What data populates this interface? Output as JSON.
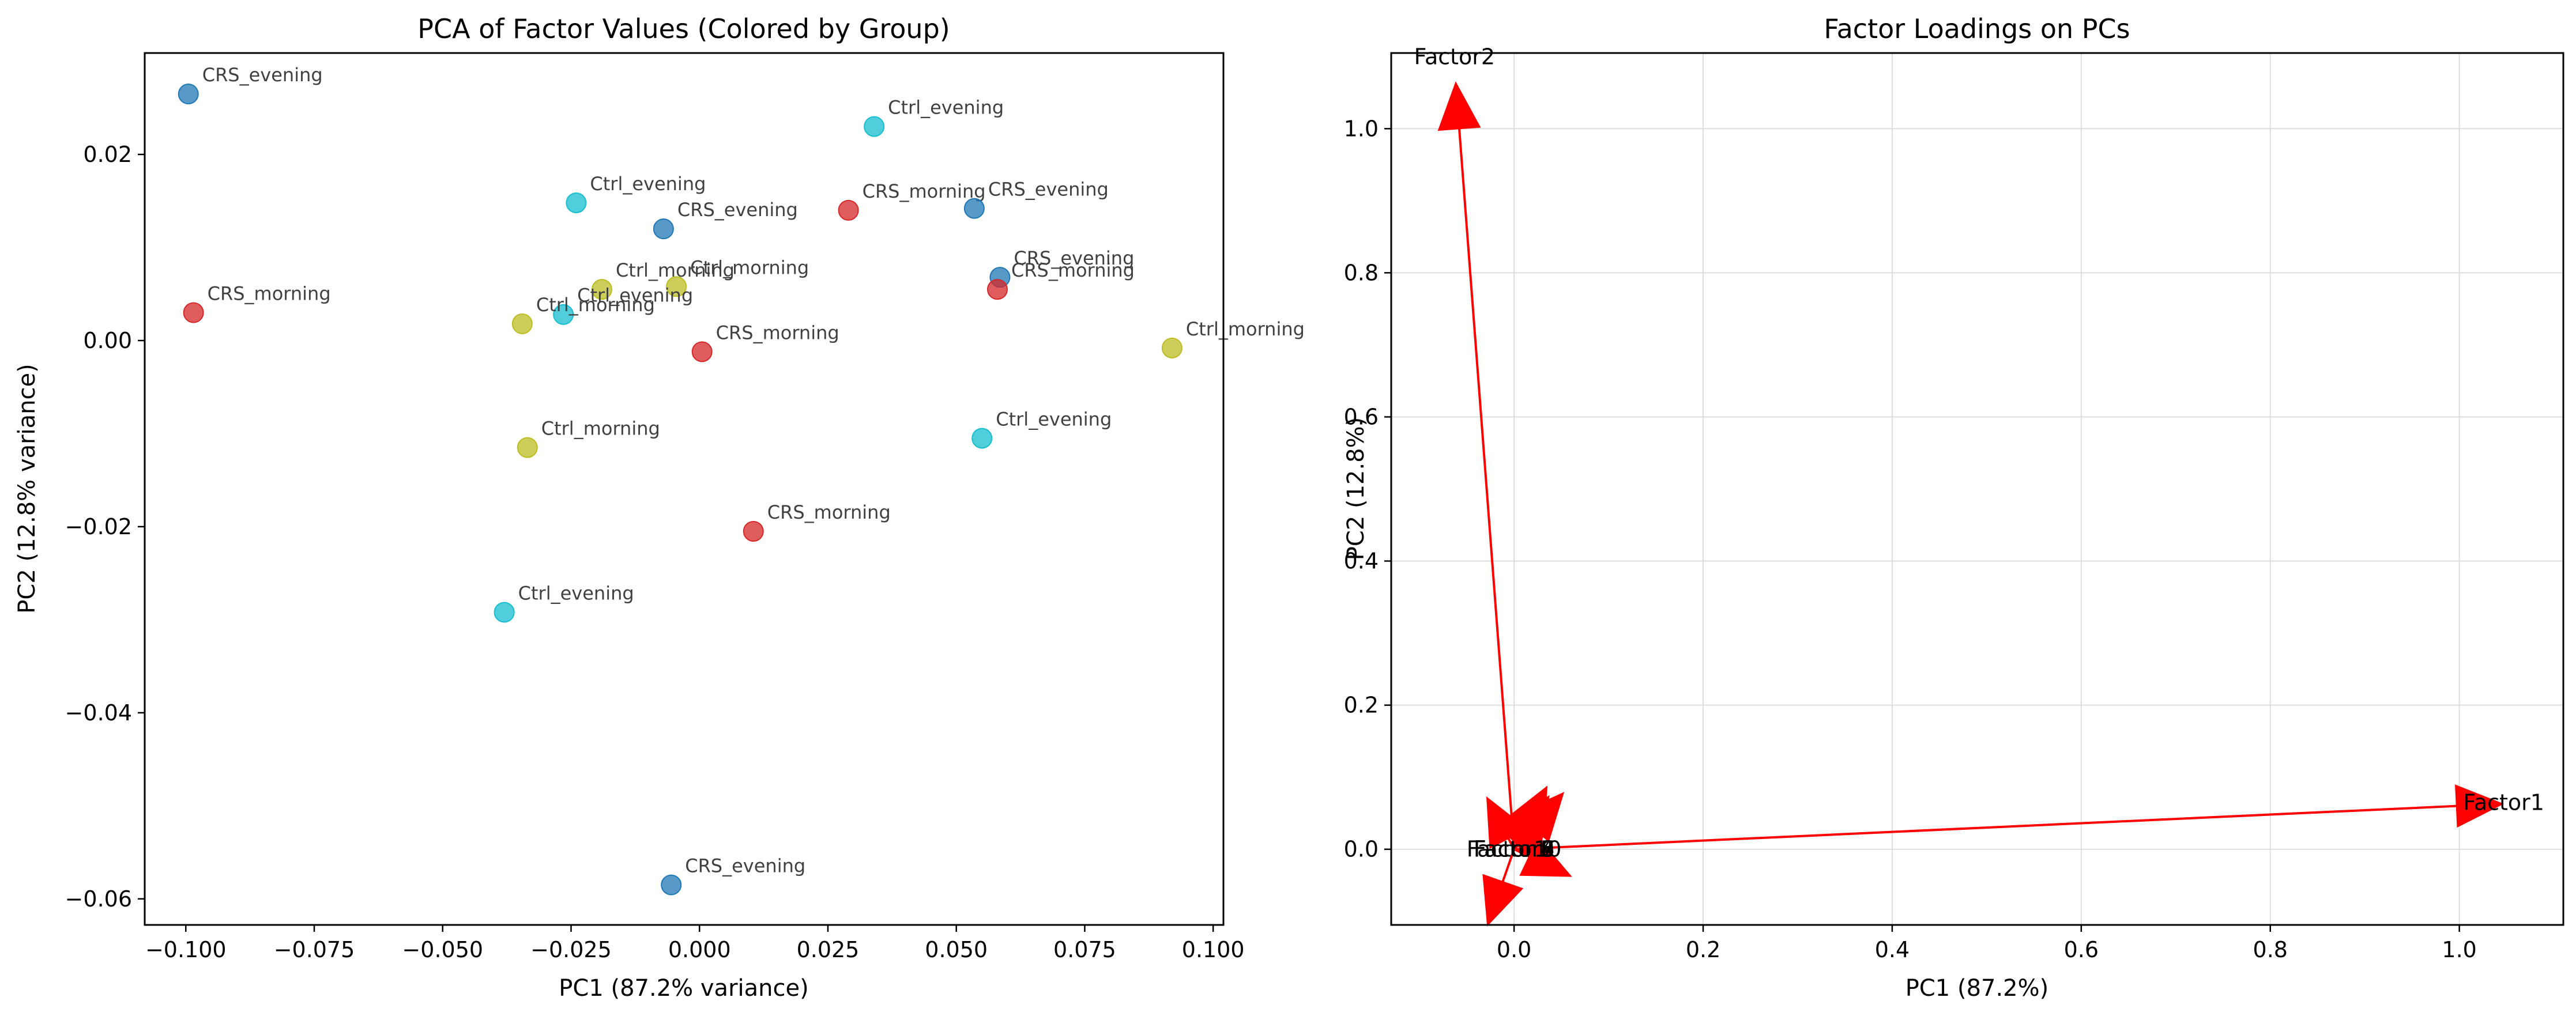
{
  "colors": {
    "CRS_evening": "#1f77b4",
    "CRS_morning": "#d62728",
    "Ctrl_evening": "#17becf",
    "Ctrl_morning": "#bcbd22",
    "arrow": "#ff0000",
    "grid": "#dddddd"
  },
  "chart_data": [
    {
      "type": "scatter",
      "title": "PCA of Factor Values (Colored by Group)",
      "xlabel": "PC1 (87.2% variance)",
      "ylabel": "PC2 (12.8% variance)",
      "xlim": [
        -0.108,
        0.102
      ],
      "ylim": [
        -0.0628,
        0.0309
      ],
      "xticks": [
        {
          "v": -0.1,
          "label": "−0.100"
        },
        {
          "v": -0.075,
          "label": "−0.075"
        },
        {
          "v": -0.05,
          "label": "−0.050"
        },
        {
          "v": -0.025,
          "label": "−0.025"
        },
        {
          "v": 0.0,
          "label": "0.000"
        },
        {
          "v": 0.025,
          "label": "0.025"
        },
        {
          "v": 0.05,
          "label": "0.050"
        },
        {
          "v": 0.075,
          "label": "0.075"
        },
        {
          "v": 0.1,
          "label": "0.100"
        }
      ],
      "yticks": [
        {
          "v": 0.02,
          "label": "0.02"
        },
        {
          "v": 0.0,
          "label": "0.00"
        },
        {
          "v": -0.02,
          "label": "−0.02"
        },
        {
          "v": -0.04,
          "label": "−0.04"
        },
        {
          "v": -0.06,
          "label": "−0.06"
        }
      ],
      "grid": false,
      "points": [
        {
          "x": -0.0995,
          "y": 0.0265,
          "group": "CRS_evening"
        },
        {
          "x": -0.0985,
          "y": 0.003,
          "group": "CRS_morning"
        },
        {
          "x": -0.024,
          "y": 0.0148,
          "group": "Ctrl_evening"
        },
        {
          "x": -0.007,
          "y": 0.012,
          "group": "CRS_evening"
        },
        {
          "x": 0.034,
          "y": 0.023,
          "group": "Ctrl_evening"
        },
        {
          "x": 0.029,
          "y": 0.014,
          "group": "CRS_morning"
        },
        {
          "x": 0.0535,
          "y": 0.0142,
          "group": "CRS_evening"
        },
        {
          "x": -0.019,
          "y": 0.0055,
          "group": "Ctrl_morning"
        },
        {
          "x": -0.0045,
          "y": 0.0058,
          "group": "Ctrl_morning"
        },
        {
          "x": -0.0265,
          "y": 0.0028,
          "group": "Ctrl_evening"
        },
        {
          "x": -0.0345,
          "y": 0.0018,
          "group": "Ctrl_morning"
        },
        {
          "x": 0.0585,
          "y": 0.0068,
          "group": "CRS_evening"
        },
        {
          "x": 0.058,
          "y": 0.0055,
          "group": "CRS_morning"
        },
        {
          "x": 0.0005,
          "y": -0.0012,
          "group": "CRS_morning"
        },
        {
          "x": 0.092,
          "y": -0.0008,
          "group": "Ctrl_morning"
        },
        {
          "x": -0.0335,
          "y": -0.0115,
          "group": "Ctrl_morning"
        },
        {
          "x": 0.055,
          "y": -0.0105,
          "group": "Ctrl_evening"
        },
        {
          "x": 0.0105,
          "y": -0.0205,
          "group": "CRS_morning"
        },
        {
          "x": -0.038,
          "y": -0.0292,
          "group": "Ctrl_evening"
        },
        {
          "x": -0.0055,
          "y": -0.0585,
          "group": "CRS_evening"
        }
      ]
    },
    {
      "type": "quiver",
      "title": "Factor Loadings on PCs",
      "xlabel": "PC1 (87.2%)",
      "ylabel": "PC2 (12.8%)",
      "xlim": [
        -0.13,
        1.11
      ],
      "ylim": [
        -0.105,
        1.105
      ],
      "xticks": [
        {
          "v": 0.0,
          "label": "0.0"
        },
        {
          "v": 0.2,
          "label": "0.2"
        },
        {
          "v": 0.4,
          "label": "0.4"
        },
        {
          "v": 0.6,
          "label": "0.6"
        },
        {
          "v": 0.8,
          "label": "0.8"
        },
        {
          "v": 1.0,
          "label": "1.0"
        }
      ],
      "yticks": [
        {
          "v": 0.0,
          "label": "0.0"
        },
        {
          "v": 0.2,
          "label": "0.2"
        },
        {
          "v": 0.4,
          "label": "0.4"
        },
        {
          "v": 0.6,
          "label": "0.6"
        },
        {
          "v": 0.8,
          "label": "0.8"
        },
        {
          "v": 1.0,
          "label": "1.0"
        }
      ],
      "grid": true,
      "loadings": [
        {
          "name": "Factor1",
          "x": 0.997,
          "y": 0.06
        },
        {
          "name": "Factor2",
          "x": -0.058,
          "y": 1.0
        },
        {
          "name": "Factor10",
          "x": 0.004,
          "y": 0.005
        },
        {
          "name": "Factor3",
          "x": -0.012,
          "y": -0.045
        },
        {
          "name": "Factor4",
          "x": 0.012,
          "y": 0.03
        },
        {
          "name": "Factor5",
          "x": 0.02,
          "y": 0.03
        },
        {
          "name": "Factor6",
          "x": -0.006,
          "y": 0.015
        },
        {
          "name": "Factor7",
          "x": 0.01,
          "y": 0.02
        },
        {
          "name": "Factor8",
          "x": 0.016,
          "y": -0.01
        },
        {
          "name": "Factor9",
          "x": 0.006,
          "y": 0.012
        }
      ],
      "labels_drawn": [
        {
          "name": "Factor1",
          "x": 1.047,
          "y": 0.065
        },
        {
          "name": "Factor2",
          "x": -0.063,
          "y": 1.1
        },
        {
          "name": "Factor3",
          "x": 0.0,
          "y": 0.0
        },
        {
          "name": "Factor4",
          "x": 0.0,
          "y": 0.0
        },
        {
          "name": "Factor5",
          "x": 0.0,
          "y": 0.0
        },
        {
          "name": "Factor6",
          "x": 0.0,
          "y": 0.0
        },
        {
          "name": "Factor7",
          "x": 0.0,
          "y": 0.0
        },
        {
          "name": "Factor8",
          "x": 0.0,
          "y": 0.0
        },
        {
          "name": "Factor9",
          "x": 0.0,
          "y": 0.0
        },
        {
          "name": "Factor10",
          "x": 0.0,
          "y": 0.0
        }
      ]
    }
  ]
}
